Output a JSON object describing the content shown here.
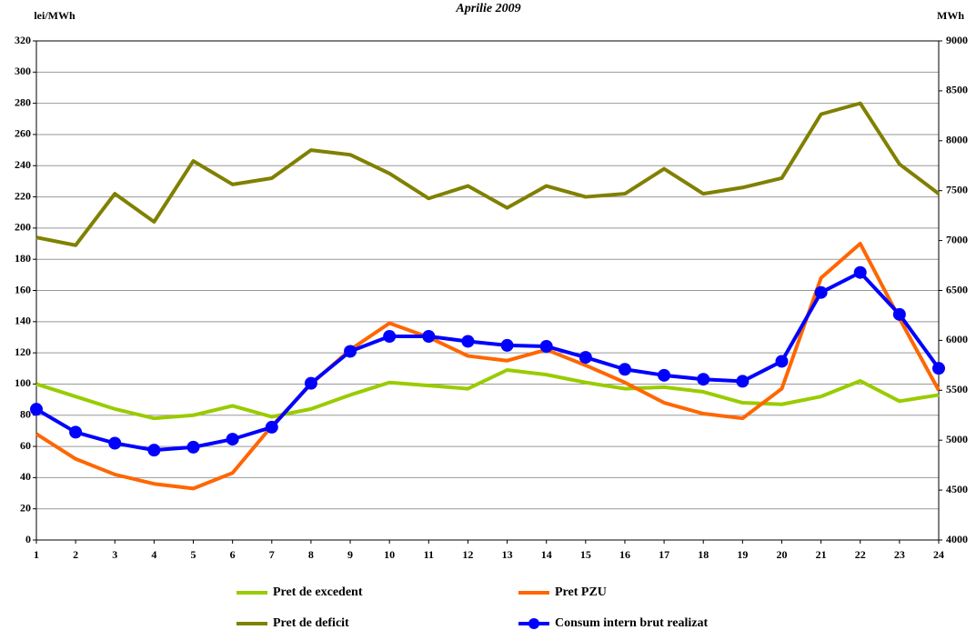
{
  "chart_data": {
    "type": "line",
    "title": "Aprilie 2009",
    "y_label": "lei/MWh",
    "y2_label": "MWh",
    "categories": [
      "1",
      "2",
      "3",
      "4",
      "5",
      "6",
      "7",
      "8",
      "9",
      "10",
      "11",
      "12",
      "13",
      "14",
      "15",
      "16",
      "17",
      "18",
      "19",
      "20",
      "21",
      "22",
      "23",
      "24"
    ],
    "ylim": [
      0,
      320
    ],
    "yticks": [
      0,
      20,
      40,
      60,
      80,
      100,
      120,
      140,
      160,
      180,
      200,
      220,
      240,
      260,
      280,
      300,
      320
    ],
    "y2lim": [
      4000,
      9000
    ],
    "y2ticks": [
      4000,
      4500,
      5000,
      5500,
      6000,
      6500,
      7000,
      7500,
      8000,
      8500,
      9000
    ],
    "grid": true,
    "series": [
      {
        "name": "Pret de excedent",
        "color": "#99cc00",
        "values": [
          100,
          92,
          84,
          78,
          80,
          86,
          79,
          84,
          93,
          101,
          99,
          97,
          109,
          106,
          101,
          97,
          98,
          95,
          88,
          87,
          92,
          102,
          89,
          93
        ]
      },
      {
        "name": "Pret PZU",
        "color": "#ff6600",
        "values": [
          68,
          52,
          42,
          36,
          33,
          43,
          73,
          100,
          122,
          139,
          130,
          118,
          115,
          122,
          112,
          101,
          88,
          81,
          78,
          97,
          168,
          190,
          142,
          96
        ]
      },
      {
        "name": "Pret de deficit",
        "color": "#808000",
        "values": [
          194,
          189,
          222,
          204,
          243,
          228,
          232,
          250,
          247,
          235,
          219,
          227,
          213,
          227,
          220,
          222,
          238,
          222,
          226,
          232,
          273,
          280,
          241,
          222
        ]
      },
      {
        "name": "Consum intern brut realizat",
        "color": "#0000ff",
        "axis": "y2",
        "marker": true,
        "values": [
          5310,
          5080,
          4970,
          4900,
          4930,
          5010,
          5130,
          5570,
          5890,
          6040,
          6040,
          5990,
          5950,
          5940,
          5830,
          5710,
          5650,
          5610,
          5590,
          5790,
          6480,
          6680,
          6260,
          5720
        ]
      }
    ]
  }
}
